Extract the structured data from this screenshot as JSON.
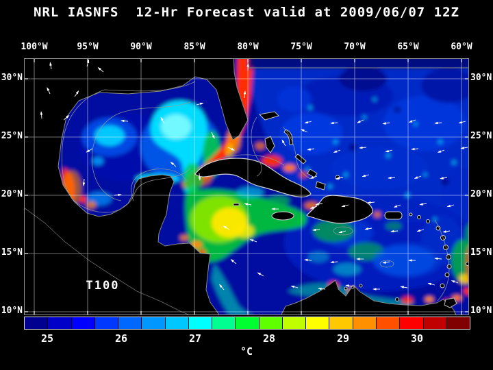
{
  "title": "NRL IASNFS  12-Hr Forecast valid at 2009/06/07 12Z",
  "axes": {
    "lon": [
      "100°W",
      "95°W",
      "90°W",
      "85°W",
      "80°W",
      "75°W",
      "70°W",
      "65°W",
      "60°W"
    ],
    "lat": [
      "30°N",
      "25°N",
      "20°N",
      "15°N",
      "10°N"
    ]
  },
  "map": {
    "field_label": "T100"
  },
  "colorbar": {
    "tick_labels": [
      "25",
      "26",
      "27",
      "28",
      "29",
      "30"
    ],
    "unit": "°C",
    "colors": [
      "#000090",
      "#0000c8",
      "#0000ff",
      "#0038ff",
      "#0068ff",
      "#0098ff",
      "#00c8ff",
      "#00ffff",
      "#00ff90",
      "#00ff30",
      "#60ff00",
      "#c0ff00",
      "#ffff00",
      "#ffc800",
      "#ff9000",
      "#ff5000",
      "#ff0000",
      "#c00000",
      "#800000"
    ]
  },
  "colors": {
    "background": "#000000",
    "grid": "#ffffff",
    "coastline": "#c8c8c8",
    "contour": "#9a9a9a",
    "ocean_base": "#0007a0",
    "text": "#ffffff"
  }
}
